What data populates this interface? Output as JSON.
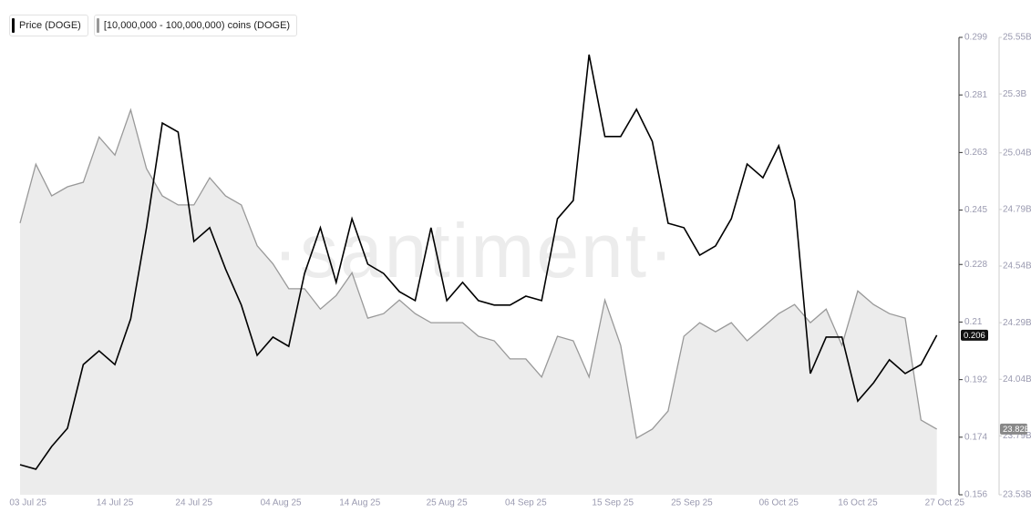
{
  "chart_data": {
    "type": "line",
    "watermark": "·santiment·",
    "x": [
      "2025-07-02",
      "2025-07-04",
      "2025-07-06",
      "2025-07-08",
      "2025-07-10",
      "2025-07-12",
      "2025-07-14",
      "2025-07-16",
      "2025-07-18",
      "2025-07-20",
      "2025-07-22",
      "2025-07-24",
      "2025-07-26",
      "2025-07-28",
      "2025-07-30",
      "2025-08-01",
      "2025-08-03",
      "2025-08-05",
      "2025-08-07",
      "2025-08-09",
      "2025-08-11",
      "2025-08-13",
      "2025-08-15",
      "2025-08-17",
      "2025-08-19",
      "2025-08-21",
      "2025-08-23",
      "2025-08-25",
      "2025-08-27",
      "2025-08-29",
      "2025-08-31",
      "2025-09-02",
      "2025-09-04",
      "2025-09-06",
      "2025-09-08",
      "2025-09-10",
      "2025-09-12",
      "2025-09-14",
      "2025-09-16",
      "2025-09-18",
      "2025-09-20",
      "2025-09-22",
      "2025-09-24",
      "2025-09-26",
      "2025-09-28",
      "2025-09-30",
      "2025-10-02",
      "2025-10-04",
      "2025-10-06",
      "2025-10-08",
      "2025-10-10",
      "2025-10-12",
      "2025-10-14",
      "2025-10-16",
      "2025-10-18",
      "2025-10-20",
      "2025-10-22",
      "2025-10-24",
      "2025-10-26"
    ],
    "xlim": [
      "2025-07-02",
      "2025-10-28"
    ],
    "xticks": [
      {
        "value": "2025-07-03",
        "label": "03 Jul 25"
      },
      {
        "value": "2025-07-14",
        "label": "14 Jul 25"
      },
      {
        "value": "2025-07-24",
        "label": "24 Jul 25"
      },
      {
        "value": "2025-08-04",
        "label": "04 Aug 25"
      },
      {
        "value": "2025-08-14",
        "label": "14 Aug 25"
      },
      {
        "value": "2025-08-25",
        "label": "25 Aug 25"
      },
      {
        "value": "2025-09-04",
        "label": "04 Sep 25"
      },
      {
        "value": "2025-09-15",
        "label": "15 Sep 25"
      },
      {
        "value": "2025-09-25",
        "label": "25 Sep 25"
      },
      {
        "value": "2025-10-06",
        "label": "06 Oct 25"
      },
      {
        "value": "2025-10-16",
        "label": "16 Oct 25"
      },
      {
        "value": "2025-10-27",
        "label": "27 Oct 25"
      }
    ],
    "ylim": [
      0.156,
      0.299
    ],
    "yticks": [
      0.156,
      0.174,
      0.192,
      0.21,
      0.228,
      0.245,
      0.263,
      0.281,
      0.299
    ],
    "y2lim": [
      23530000000,
      25550000000
    ],
    "y2ticks": [
      {
        "value": 23530000000,
        "label": "23.53B"
      },
      {
        "value": 23790000000,
        "label": "23.79B"
      },
      {
        "value": 24040000000,
        "label": "24.04B"
      },
      {
        "value": 24290000000,
        "label": "24.29B"
      },
      {
        "value": 24540000000,
        "label": "24.54B"
      },
      {
        "value": 24790000000,
        "label": "24.79B"
      },
      {
        "value": 25040000000,
        "label": "25.04B"
      },
      {
        "value": 25300000000,
        "label": "25.3B"
      },
      {
        "value": 25550000000,
        "label": "25.55B"
      }
    ],
    "series": [
      {
        "name": "Price (DOGE)",
        "color": "#000000",
        "type": "line",
        "last_label": "0.206",
        "values": [
          0.1654,
          0.164,
          0.1711,
          0.1768,
          0.1967,
          0.201,
          0.1967,
          0.211,
          0.2395,
          0.2722,
          0.2694,
          0.2352,
          0.2395,
          0.2266,
          0.2153,
          0.1996,
          0.2053,
          0.2024,
          0.2252,
          0.2395,
          0.2224,
          0.2423,
          0.2281,
          0.2252,
          0.2195,
          0.2167,
          0.2395,
          0.2167,
          0.2224,
          0.2167,
          0.2153,
          0.2153,
          0.2181,
          0.2167,
          0.2423,
          0.248,
          0.2936,
          0.268,
          0.268,
          0.2765,
          0.2665,
          0.2409,
          0.2395,
          0.2309,
          0.2338,
          0.2423,
          0.2594,
          0.2551,
          0.2651,
          0.248,
          0.1939,
          0.2053,
          0.2053,
          0.1853,
          0.191,
          0.1982,
          0.1939,
          0.1967,
          0.2059
        ]
      },
      {
        "name": "[10,000,000 - 100,000,000) coins (DOGE)",
        "color": "#999999",
        "type": "area",
        "axis": "y2",
        "last_label": "23.82B",
        "values": [
          24730000000,
          24990000000,
          24850000000,
          24890000000,
          24910000000,
          25110000000,
          25030000000,
          25230000000,
          24970000000,
          24850000000,
          24810000000,
          24810000000,
          24930000000,
          24850000000,
          24810000000,
          24630000000,
          24550000000,
          24440000000,
          24440000000,
          24350000000,
          24410000000,
          24510000000,
          24310000000,
          24330000000,
          24390000000,
          24330000000,
          24290000000,
          24290000000,
          24290000000,
          24230000000,
          24210000000,
          24130000000,
          24130000000,
          24050000000,
          24230000000,
          24210000000,
          24050000000,
          24390000000,
          24190000000,
          23780000000,
          23820000000,
          23900000000,
          24230000000,
          24290000000,
          24250000000,
          24290000000,
          24210000000,
          24270000000,
          24330000000,
          24370000000,
          24290000000,
          24350000000,
          24190000000,
          24430000000,
          24370000000,
          24330000000,
          24310000000,
          23860000000,
          23820000000
        ]
      }
    ]
  }
}
